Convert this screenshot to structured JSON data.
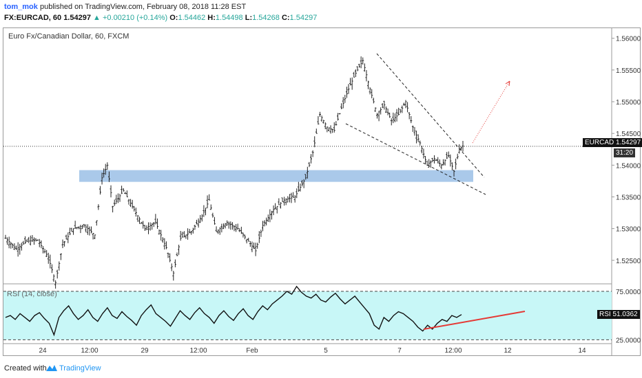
{
  "header": {
    "author": "tom_mok",
    "published_text": "published on TradingView.com, February 08, 2018 11:28 EST",
    "symbol": "FX:EURCAD, 60",
    "last": "1.54297",
    "change": "+0.00210 (+0.14%)",
    "o_label": "O:",
    "o_value": "1.54462",
    "h_label": "H:",
    "h_value": "1.54498",
    "l_label": "L:",
    "l_value": "1.54268",
    "c_label": "C:",
    "c_value": "1.54297"
  },
  "chart_title": "Euro Fx/Canadian Dollar, 60, FXCM",
  "rsi_title": "RSI (14, close)",
  "price_label": {
    "name": "EURCAD",
    "value": "1.54297",
    "countdown": "31:20"
  },
  "rsi_label": {
    "name": "RSI",
    "value": "51.0362"
  },
  "footer": {
    "created_with": "Created with",
    "brand": "TradingView"
  },
  "colors": {
    "up_arrow": "#26a69a",
    "support_zone": "#9bbfe6",
    "rsi_fill": "#c8f7f7",
    "rsi_trend": "#e53935",
    "projection": "#e53935",
    "bars": "#222222",
    "brand": "#2196f3"
  },
  "chart_data": [
    {
      "type": "ohlc",
      "title": "Euro Fx/Canadian Dollar, 60, FXCM",
      "y_ticks": [
        "1.56000",
        "1.55500",
        "1.55000",
        "1.54500",
        "1.54000",
        "1.53500",
        "1.53000",
        "1.52500"
      ],
      "ylim": [
        1.5214,
        1.5617
      ],
      "x_ticks": [
        "24",
        "12:00",
        "29",
        "12:00",
        "Feb",
        "5",
        "7",
        "12:00",
        "12",
        "14"
      ],
      "last_price": 1.54297,
      "price_path": [
        [
          0,
          1.5285
        ],
        [
          6,
          1.5268
        ],
        [
          12,
          1.528
        ],
        [
          18,
          1.5282
        ],
        [
          24,
          1.5255
        ],
        [
          28,
          1.5215
        ],
        [
          32,
          1.5275
        ],
        [
          38,
          1.53
        ],
        [
          44,
          1.5305
        ],
        [
          50,
          1.529
        ],
        [
          54,
          1.538
        ],
        [
          57,
          1.54
        ],
        [
          60,
          1.5335
        ],
        [
          66,
          1.536
        ],
        [
          72,
          1.533
        ],
        [
          78,
          1.53
        ],
        [
          84,
          1.531
        ],
        [
          90,
          1.527
        ],
        [
          94,
          1.523
        ],
        [
          98,
          1.5285
        ],
        [
          104,
          1.5295
        ],
        [
          110,
          1.532
        ],
        [
          114,
          1.5345
        ],
        [
          118,
          1.5295
        ],
        [
          124,
          1.531
        ],
        [
          130,
          1.53
        ],
        [
          136,
          1.528
        ],
        [
          140,
          1.5265
        ],
        [
          144,
          1.5305
        ],
        [
          150,
          1.533
        ],
        [
          156,
          1.5345
        ],
        [
          162,
          1.535
        ],
        [
          168,
          1.538
        ],
        [
          172,
          1.542
        ],
        [
          176,
          1.548
        ],
        [
          180,
          1.546
        ],
        [
          184,
          1.5455
        ],
        [
          188,
          1.549
        ],
        [
          192,
          1.552
        ],
        [
          196,
          1.5545
        ],
        [
          200,
          1.5565
        ],
        [
          204,
          1.552
        ],
        [
          208,
          1.548
        ],
        [
          212,
          1.5495
        ],
        [
          216,
          1.547
        ],
        [
          220,
          1.548
        ],
        [
          224,
          1.55
        ],
        [
          228,
          1.546
        ],
        [
          232,
          1.5435
        ],
        [
          236,
          1.54
        ],
        [
          240,
          1.541
        ],
        [
          244,
          1.54
        ],
        [
          248,
          1.5415
        ],
        [
          251,
          1.539
        ],
        [
          254,
          1.5425
        ],
        [
          256,
          1.543
        ]
      ],
      "annotations": {
        "support_zone": [
          1.5378,
          1.539
        ],
        "wedge_upper": [
          [
            1.557,
            "6 00:00"
          ],
          [
            1.538,
            "9 04:00"
          ]
        ],
        "wedge_lower": [
          [
            1.5466,
            "5 12:00"
          ],
          [
            1.5345,
            "9 04:00"
          ]
        ],
        "projection_target": 1.5527
      }
    },
    {
      "type": "line",
      "title": "RSI (14, close)",
      "y_ticks": [
        "75.0000",
        "25.0000"
      ],
      "ylim": [
        21,
        82
      ],
      "levels": [
        75,
        25
      ],
      "last_value": 51.0362,
      "values": [
        48,
        50,
        46,
        52,
        48,
        44,
        50,
        53,
        47,
        42,
        30,
        48,
        55,
        60,
        52,
        46,
        50,
        56,
        48,
        44,
        52,
        58,
        50,
        47,
        54,
        49,
        45,
        40,
        50,
        56,
        61,
        52,
        48,
        44,
        39,
        47,
        55,
        50,
        46,
        53,
        58,
        52,
        48,
        42,
        50,
        55,
        49,
        45,
        52,
        57,
        50,
        46,
        54,
        60,
        56,
        62,
        66,
        70,
        75,
        72,
        80,
        74,
        70,
        68,
        72,
        66,
        64,
        69,
        73,
        67,
        62,
        66,
        70,
        64,
        58,
        52,
        40,
        36,
        48,
        44,
        50,
        54,
        52,
        48,
        44,
        38,
        34,
        40,
        36,
        42,
        46,
        44,
        50,
        48,
        51
      ],
      "trendline": [
        [
          0,
          30
        ],
        [
          1,
          44
        ]
      ]
    }
  ]
}
